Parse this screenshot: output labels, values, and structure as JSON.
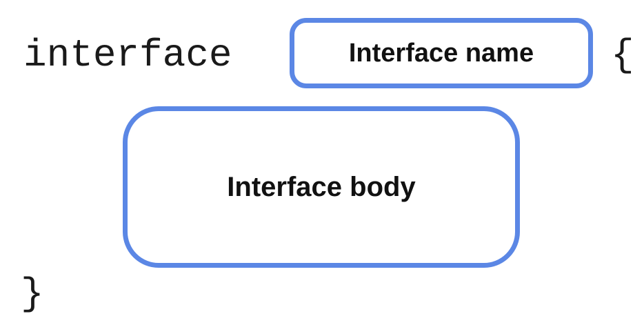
{
  "diagram": {
    "keyword": "interface",
    "open_brace": "{",
    "close_brace": "}",
    "name_placeholder": "Interface name",
    "body_placeholder": "Interface body",
    "accent_color": "#5b87e5"
  }
}
